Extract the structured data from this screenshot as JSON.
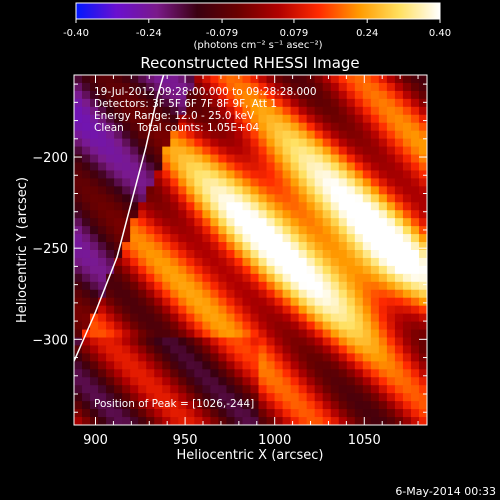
{
  "colorbar": {
    "tick_labels": [
      "-0.40",
      "-0.24",
      "-0.079",
      "0.079",
      "0.24",
      "0.40"
    ],
    "units_label": "(photons cm⁻² s⁻¹ asec⁻²)",
    "min": -0.4,
    "max": 0.4,
    "colors": [
      "#0018ff",
      "#6a10d0",
      "#7a1a8a",
      "#3a0010",
      "#6a0000",
      "#b00000",
      "#ff2a00",
      "#ff9a00",
      "#ffe060",
      "#ffffff"
    ]
  },
  "image_title": "Reconstructed RHESSI Image",
  "info_lines": [
    "19-Jul-2012 09:28:00.000 to 09:28:28.000",
    "Detectors: 3F 5F 6F 7F 8F 9F, Att 1",
    "Energy Range: 12.0 - 25.0 keV",
    "Clean    Total counts: 1.05E+04"
  ],
  "peak_text": "Position of Peak = [1026,-244]",
  "footer_date": "6-May-2014 00:33",
  "chart_data": {
    "type": "heatmap",
    "title": "Reconstructed RHESSI Image",
    "xlabel": "Heliocentric X (arcsec)",
    "ylabel": "Heliocentric Y (arcsec)",
    "xlim": [
      888,
      1085
    ],
    "ylim": [
      -347,
      -155
    ],
    "x_ticks": [
      900,
      950,
      1000,
      1050
    ],
    "y_ticks": [
      -200,
      -250,
      -300
    ],
    "x_tick_labels": [
      "900",
      "950",
      "1000",
      "1050"
    ],
    "y_tick_labels": [
      "−200",
      "−250",
      "−300"
    ],
    "value_range": [
      -0.4,
      0.4
    ],
    "peak": [
      1026,
      -244
    ],
    "limb_line": [
      [
        888,
        -312
      ],
      [
        900,
        -285
      ],
      [
        912,
        -255
      ],
      [
        920,
        -225
      ],
      [
        928,
        -195
      ],
      [
        935,
        -165
      ],
      [
        938,
        -155
      ]
    ]
  }
}
